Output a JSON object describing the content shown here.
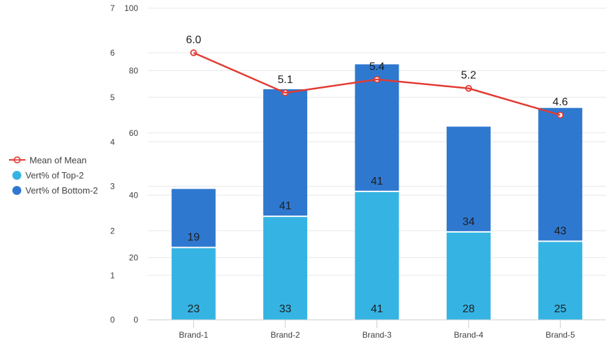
{
  "chart_data": {
    "type": "combo",
    "title": "",
    "categories": [
      "Brand-1",
      "Brand-2",
      "Brand-3",
      "Brand-4",
      "Brand-5"
    ],
    "series": [
      {
        "name": "Mean of Mean",
        "type": "line",
        "axis": "line",
        "color": "#e23b32",
        "values": [
          6.0,
          5.1,
          5.4,
          5.2,
          4.6
        ],
        "labels": [
          "6.0",
          "5.1",
          "5.4",
          "5.2",
          "4.6"
        ]
      },
      {
        "name": "Vert% of Top-2",
        "type": "stacked-bar",
        "axis": "bar",
        "color": "#35b4e3",
        "values": [
          23,
          33,
          41,
          28,
          25
        ],
        "labels": [
          "23",
          "33",
          "41",
          "28",
          "25"
        ]
      },
      {
        "name": "Vert% of Bottom-2",
        "type": "stacked-bar",
        "axis": "bar",
        "color": "#2f78cf",
        "values": [
          19,
          41,
          41,
          34,
          43
        ],
        "labels": [
          "19",
          "41",
          "41",
          "34",
          "43"
        ]
      }
    ],
    "line_axis": {
      "min": 0,
      "max": 7,
      "ticks": [
        0,
        1,
        2,
        3,
        4,
        5,
        6,
        7
      ],
      "labels": [
        "0",
        "1",
        "2",
        "3",
        "4",
        "5",
        "6",
        "7"
      ]
    },
    "bar_axis": {
      "min": 0,
      "max": 100,
      "ticks": [
        0,
        20,
        40,
        60,
        80,
        100
      ],
      "labels": [
        "0",
        "20",
        "40",
        "60",
        "80",
        "100"
      ]
    },
    "legend_position": "left-middle",
    "grid": true,
    "styles": {
      "gridline": "#e7e7e7",
      "baseline": "#cccccc",
      "category_tick": "#c6cdd4",
      "tick_text": "#3f3f3f",
      "category_text": "#3f3f3f",
      "data_label": "#1d1d1d",
      "marker_fill": "#ffffff",
      "background": "#ffffff"
    }
  }
}
